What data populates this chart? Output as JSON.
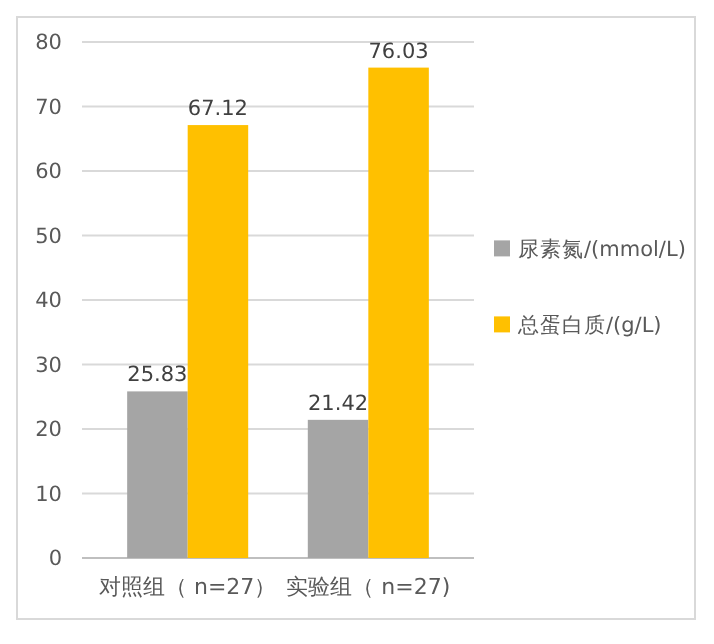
{
  "chart_data": {
    "type": "bar",
    "categories": [
      "对照组（ n=27）",
      "实验组（ n=27)"
    ],
    "series": [
      {
        "name": "尿素氮/(mmol/L)",
        "color": "#a5a5a5",
        "values": [
          25.83,
          21.42
        ]
      },
      {
        "name": "总蛋白质/(g/L)",
        "color": "#ffc000",
        "values": [
          67.12,
          76.03
        ]
      }
    ],
    "ylim": [
      0,
      80
    ],
    "yticks": [
      0,
      10,
      20,
      30,
      40,
      50,
      60,
      70,
      80
    ],
    "grid": true,
    "data_labels": true,
    "legend": "right"
  }
}
